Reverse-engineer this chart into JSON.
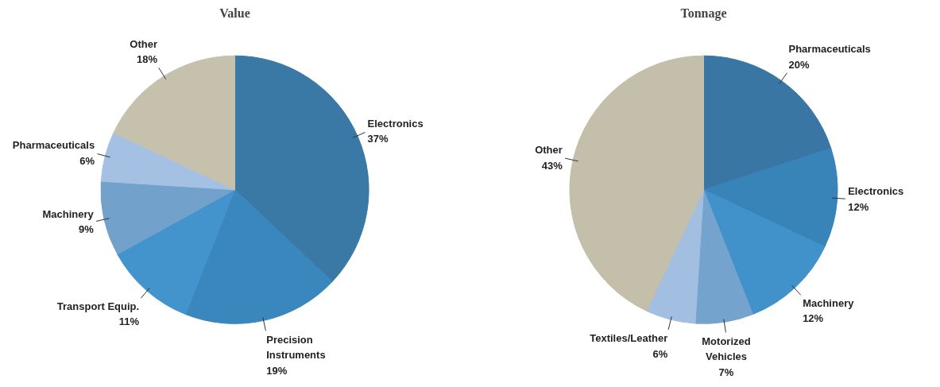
{
  "chart_data": [
    {
      "type": "pie",
      "title": "Value",
      "categories": [
        "Electronics",
        "Precision Instruments",
        "Transport Equip.",
        "Machinery",
        "Pharmaceuticals",
        "Other"
      ],
      "values": [
        37,
        19,
        11,
        9,
        6,
        18
      ],
      "value_labels": [
        "37%",
        "19%",
        "11%",
        "9%",
        "6%",
        "18%"
      ],
      "colors": [
        "#3a78a6",
        "#3a87bd",
        "#4393cd",
        "#72a2cc",
        "#a4c1e3",
        "#c6c1ac"
      ]
    },
    {
      "type": "pie",
      "title": "Tonnage",
      "categories": [
        "Pharmaceuticals",
        "Electronics",
        "Machinery",
        "Motorized Vehicles",
        "Textiles/Leather",
        "Other"
      ],
      "values": [
        20,
        12,
        12,
        7,
        6,
        43
      ],
      "value_labels": [
        "20%",
        "12%",
        "12%",
        "7%",
        "6%",
        "43%"
      ],
      "colors": [
        "#3976a3",
        "#3884b9",
        "#4191ca",
        "#74a3cd",
        "#a2bfe1",
        "#c4bfaa"
      ]
    }
  ]
}
